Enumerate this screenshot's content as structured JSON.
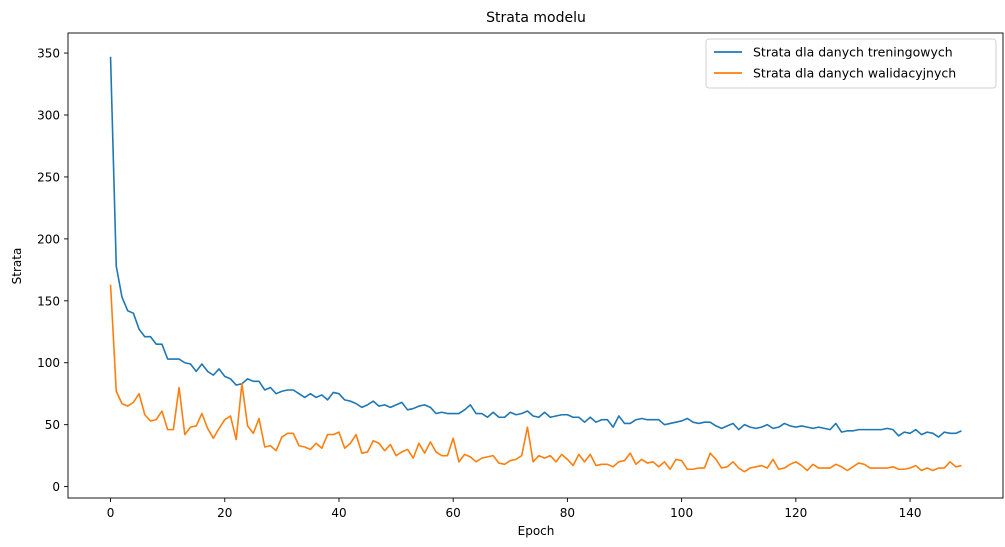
{
  "chart_data": {
    "type": "line",
    "title": "Strata modelu",
    "xlabel": "Epoch",
    "ylabel": "Strata",
    "xlim": [
      -7.45,
      156.45
    ],
    "ylim": [
      -9.2,
      366.2
    ],
    "xticks": [
      0,
      20,
      40,
      60,
      80,
      100,
      120,
      140
    ],
    "yticks": [
      0,
      50,
      100,
      150,
      200,
      250,
      300,
      350
    ],
    "grid": false,
    "legend_position": "top-right",
    "series": [
      {
        "name": "Strata dla danych treningowych",
        "color": "#1f77b4",
        "values": [
          347,
          178,
          153,
          142,
          140,
          127,
          121,
          121,
          115,
          115,
          103,
          103,
          103,
          100,
          99,
          93,
          99,
          93,
          90,
          95,
          89,
          87,
          82,
          83,
          87,
          85,
          85,
          78,
          80,
          75,
          77,
          78,
          78,
          75,
          72,
          75,
          72,
          74,
          70,
          76,
          75,
          70,
          69,
          67,
          64,
          66,
          69,
          65,
          66,
          64,
          66,
          68,
          62,
          63,
          65,
          66,
          64,
          59,
          60,
          59,
          59,
          59,
          62,
          66,
          59,
          59,
          56,
          60,
          56,
          56,
          60,
          58,
          59,
          61,
          57,
          56,
          60,
          56,
          57,
          58,
          58,
          56,
          56,
          52,
          56,
          52,
          54,
          54,
          48,
          57,
          51,
          51,
          54,
          55,
          54,
          54,
          54,
          50,
          51,
          52,
          53,
          55,
          52,
          51,
          52,
          52,
          49,
          47,
          49,
          51,
          46,
          50,
          48,
          47,
          48,
          50,
          47,
          48,
          51,
          49,
          48,
          49,
          48,
          47,
          48,
          47,
          46,
          51,
          44,
          45,
          45,
          46,
          46,
          46,
          46,
          46,
          47,
          46,
          41,
          44,
          43,
          46,
          42,
          44,
          43,
          40,
          44,
          43,
          43,
          45
        ]
      },
      {
        "name": "Strata dla danych walidacyjnych",
        "color": "#ff7f0e",
        "values": [
          163,
          77,
          67,
          65,
          68,
          75,
          58,
          53,
          54,
          61,
          46,
          46,
          80,
          42,
          48,
          49,
          59,
          47,
          39,
          47,
          54,
          57,
          38,
          83,
          49,
          43,
          55,
          32,
          33,
          29,
          40,
          43,
          43,
          33,
          32,
          30,
          35,
          31,
          42,
          42,
          44,
          31,
          35,
          42,
          27,
          28,
          37,
          35,
          29,
          34,
          25,
          28,
          30,
          23,
          35,
          27,
          36,
          28,
          25,
          25,
          39,
          20,
          26,
          24,
          20,
          23,
          24,
          25,
          19,
          18,
          21,
          22,
          25,
          48,
          20,
          25,
          23,
          25,
          20,
          26,
          22,
          17,
          26,
          20,
          26,
          17,
          18,
          18,
          16,
          20,
          21,
          27,
          18,
          22,
          19,
          20,
          16,
          20,
          14,
          22,
          21,
          14,
          14,
          15,
          15,
          27,
          22,
          15,
          16,
          20,
          15,
          12,
          15,
          16,
          17,
          15,
          22,
          14,
          15,
          18,
          20,
          17,
          13,
          18,
          15,
          15,
          15,
          18,
          16,
          13,
          16,
          19,
          18,
          15,
          15,
          15,
          15,
          16,
          14,
          14,
          15,
          17,
          13,
          15,
          13,
          15,
          15,
          20,
          16,
          17
        ]
      }
    ]
  }
}
